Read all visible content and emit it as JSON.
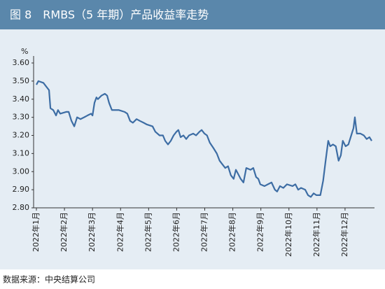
{
  "chart_data": {
    "type": "line",
    "title": "图 8　RMBS（5 年期）产品收益率走势",
    "y_label": "%",
    "source": "数据来源：中央结算公司",
    "xlim": [
      -0.1,
      11.95
    ],
    "ylim": [
      2.8,
      3.6
    ],
    "xticks": [
      {
        "value": 0,
        "label": "2022年1月"
      },
      {
        "value": 1,
        "label": "2022年2月"
      },
      {
        "value": 2,
        "label": "2022年3月"
      },
      {
        "value": 3,
        "label": "2022年4月"
      },
      {
        "value": 4,
        "label": "2022年5月"
      },
      {
        "value": 5,
        "label": "2022年6月"
      },
      {
        "value": 6,
        "label": "2022年7月"
      },
      {
        "value": 7,
        "label": "2022年8月"
      },
      {
        "value": 8,
        "label": "2022年9月"
      },
      {
        "value": 9,
        "label": "2022年10月"
      },
      {
        "value": 10,
        "label": "2022年11月"
      },
      {
        "value": 11,
        "label": "2022年12月"
      }
    ],
    "yticks": [
      {
        "value": 2.8,
        "label": "2.80"
      },
      {
        "value": 2.9,
        "label": "2.90"
      },
      {
        "value": 3.0,
        "label": "3.00"
      },
      {
        "value": 3.1,
        "label": "3.10"
      },
      {
        "value": 3.2,
        "label": "3.20"
      },
      {
        "value": 3.3,
        "label": "3.30"
      },
      {
        "value": 3.4,
        "label": "3.40"
      },
      {
        "value": 3.5,
        "label": "3.50"
      },
      {
        "value": 3.6,
        "label": "3.60"
      }
    ],
    "grid": false,
    "color": "#3d6da4",
    "x": [
      0,
      0.07,
      0.25,
      0.35,
      0.45,
      0.5,
      0.6,
      0.7,
      0.77,
      0.85,
      1.07,
      1.15,
      1.25,
      1.35,
      1.45,
      1.57,
      1.7,
      1.82,
      1.95,
      2.0,
      2.07,
      2.14,
      2.19,
      2.32,
      2.44,
      2.52,
      2.59,
      2.69,
      2.94,
      3.14,
      3.24,
      3.34,
      3.44,
      3.57,
      3.69,
      3.82,
      3.94,
      4.14,
      4.24,
      4.39,
      4.51,
      4.59,
      4.69,
      4.79,
      4.89,
      4.99,
      5.06,
      5.14,
      5.24,
      5.34,
      5.44,
      5.59,
      5.69,
      5.81,
      5.89,
      5.99,
      6.08,
      6.18,
      6.31,
      6.43,
      6.53,
      6.63,
      6.73,
      6.83,
      6.93,
      7.03,
      7.11,
      7.18,
      7.28,
      7.38,
      7.48,
      7.63,
      7.73,
      7.83,
      7.91,
      7.98,
      8.13,
      8.25,
      8.38,
      8.5,
      8.58,
      8.68,
      8.8,
      8.93,
      9.13,
      9.23,
      9.33,
      9.43,
      9.58,
      9.68,
      9.78,
      9.88,
      9.98,
      10.12,
      10.22,
      10.3,
      10.4,
      10.47,
      10.57,
      10.67,
      10.77,
      10.85,
      10.92,
      11.02,
      11.12,
      11.22,
      11.3,
      11.35,
      11.42,
      11.55,
      11.67,
      11.77,
      11.87,
      11.95
    ],
    "values": [
      3.48,
      3.5,
      3.49,
      3.47,
      3.45,
      3.35,
      3.34,
      3.31,
      3.34,
      3.32,
      3.33,
      3.33,
      3.28,
      3.25,
      3.3,
      3.29,
      3.3,
      3.31,
      3.32,
      3.31,
      3.38,
      3.41,
      3.4,
      3.42,
      3.43,
      3.42,
      3.38,
      3.34,
      3.34,
      3.33,
      3.32,
      3.28,
      3.27,
      3.29,
      3.28,
      3.27,
      3.26,
      3.25,
      3.22,
      3.2,
      3.2,
      3.17,
      3.15,
      3.17,
      3.2,
      3.22,
      3.23,
      3.19,
      3.2,
      3.18,
      3.2,
      3.21,
      3.2,
      3.22,
      3.23,
      3.21,
      3.2,
      3.16,
      3.13,
      3.1,
      3.06,
      3.04,
      3.02,
      3.03,
      2.98,
      2.96,
      3.01,
      2.99,
      2.96,
      2.94,
      3.02,
      3.01,
      3.02,
      2.97,
      2.96,
      2.93,
      2.92,
      2.93,
      2.94,
      2.9,
      2.89,
      2.92,
      2.91,
      2.93,
      2.92,
      2.93,
      2.9,
      2.91,
      2.9,
      2.87,
      2.86,
      2.88,
      2.87,
      2.87,
      2.95,
      3.05,
      3.17,
      3.14,
      3.15,
      3.14,
      3.06,
      3.09,
      3.17,
      3.14,
      3.15,
      3.2,
      3.24,
      3.3,
      3.21,
      3.21,
      3.2,
      3.18,
      3.19,
      3.17
    ]
  }
}
